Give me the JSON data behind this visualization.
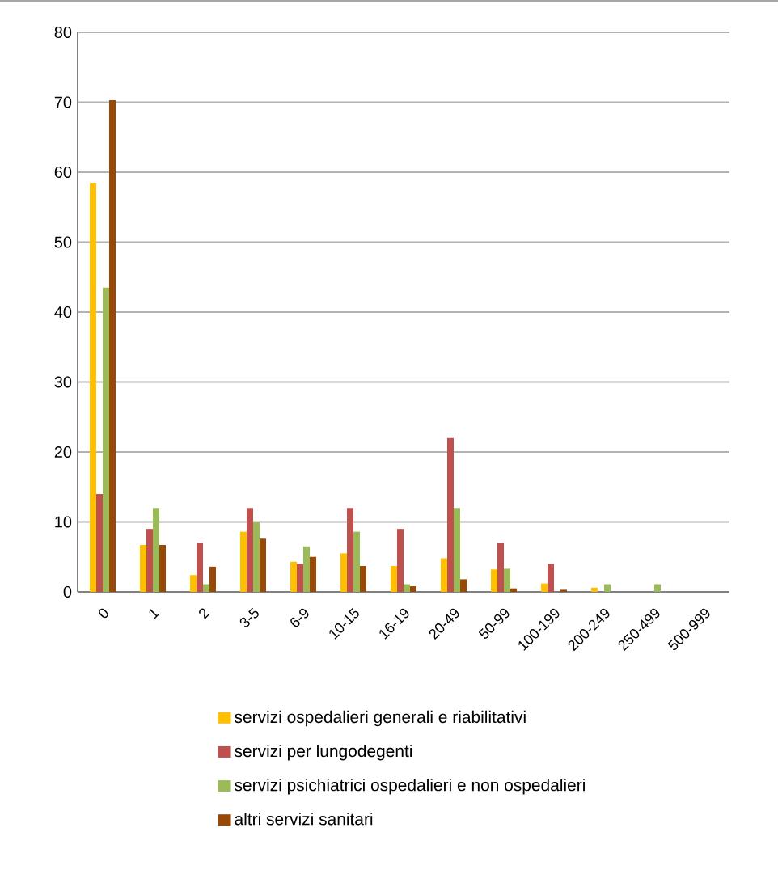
{
  "chart_data": {
    "type": "bar",
    "categories": [
      "0",
      "1",
      "2",
      "3-5",
      "6-9",
      "10-15",
      "16-19",
      "20-49",
      "50-99",
      "100-199",
      "200-249",
      "250-499",
      "500-999"
    ],
    "series": [
      {
        "name": "servizi ospedalieri generali e riabilitativi",
        "color": "#ffc000",
        "values": [
          58.5,
          6.7,
          2.4,
          8.6,
          4.3,
          5.5,
          3.7,
          4.8,
          3.2,
          1.2,
          0.6,
          0,
          0
        ]
      },
      {
        "name": "servizi per lungodegenti",
        "color": "#c0504d",
        "values": [
          14,
          9,
          7,
          12,
          4,
          12,
          9,
          22,
          7,
          4,
          0,
          0,
          0
        ]
      },
      {
        "name": "servizi psichiatrici ospedalieri e non ospedalieri",
        "color": "#9bbb59",
        "values": [
          43.5,
          12,
          1.1,
          10,
          6.5,
          8.6,
          1.1,
          12,
          3.3,
          0,
          1.1,
          1.1,
          0
        ]
      },
      {
        "name": "altri servizi sanitari",
        "color": "#984807",
        "values": [
          70.3,
          6.7,
          3.6,
          7.6,
          5,
          3.7,
          0.8,
          1.8,
          0.5,
          0.3,
          0,
          0,
          0
        ]
      }
    ],
    "ylim": [
      0,
      80
    ],
    "yticks": [
      0,
      10,
      20,
      30,
      40,
      50,
      60,
      70,
      80
    ],
    "grid": "y",
    "legend": "bottom"
  }
}
